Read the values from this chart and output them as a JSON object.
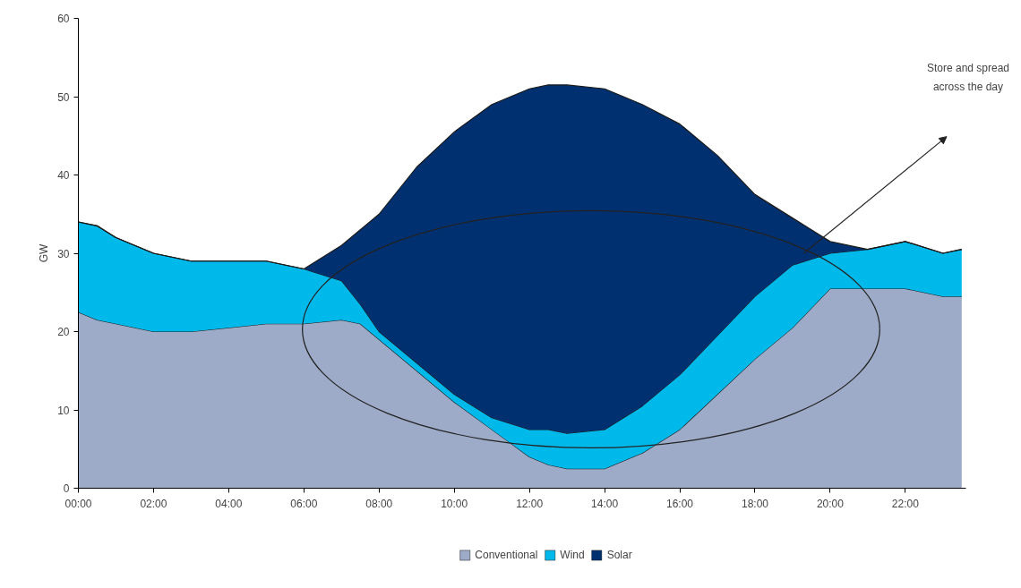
{
  "chart_data": {
    "type": "area",
    "stacked": true,
    "ylabel": "GW",
    "x": [
      0,
      0.5,
      1,
      2,
      3,
      4,
      5,
      6,
      7,
      7.5,
      8,
      9,
      10,
      11,
      12,
      12.5,
      13,
      14,
      15,
      16,
      17,
      18,
      19,
      20,
      21,
      22,
      23,
      23.5
    ],
    "series": [
      {
        "name": "Conventional",
        "color": "#9daac8",
        "values": [
          22.5,
          21.5,
          21,
          20,
          20,
          20.5,
          21,
          21,
          21.5,
          21,
          19,
          15,
          11,
          7.5,
          4,
          3,
          2.5,
          2.5,
          4.5,
          7.5,
          12,
          16.5,
          20.5,
          25.5,
          25.5,
          25.5,
          24.5,
          24.5
        ]
      },
      {
        "name": "Wind",
        "color": "#00b9eb",
        "values": [
          11.5,
          12,
          11,
          10,
          9,
          8.5,
          8,
          7,
          5,
          2.5,
          1,
          1,
          1,
          1.5,
          3.5,
          4.5,
          4.5,
          5,
          6,
          7,
          7.5,
          8,
          8,
          4.5,
          5,
          6,
          5.5,
          6
        ]
      },
      {
        "name": "Solar",
        "color": "#003070",
        "values": [
          0,
          0,
          0,
          0,
          0,
          0,
          0,
          0,
          4.5,
          9.5,
          15,
          25,
          33.5,
          40,
          43.5,
          44,
          44.5,
          43.5,
          38.5,
          32,
          23,
          13,
          6,
          1.5,
          0,
          0,
          0,
          0
        ]
      }
    ],
    "xlim": [
      0,
      23.6
    ],
    "ylim": [
      0,
      60
    ],
    "xticks": [
      {
        "value": 0,
        "label": "00:00"
      },
      {
        "value": 2,
        "label": "02:00"
      },
      {
        "value": 4,
        "label": "04:00"
      },
      {
        "value": 6,
        "label": "06:00"
      },
      {
        "value": 8,
        "label": "08:00"
      },
      {
        "value": 10,
        "label": "10:00"
      },
      {
        "value": 12,
        "label": "12:00"
      },
      {
        "value": 14,
        "label": "14:00"
      },
      {
        "value": 16,
        "label": "16:00"
      },
      {
        "value": 18,
        "label": "18:00"
      },
      {
        "value": 20,
        "label": "20:00"
      },
      {
        "value": 22,
        "label": "22:00"
      }
    ],
    "yticks": [
      0,
      10,
      20,
      30,
      40,
      50,
      60
    ],
    "grid": false,
    "legend": "bottom",
    "annotations": [
      "Store and spread\nacross the day"
    ]
  }
}
